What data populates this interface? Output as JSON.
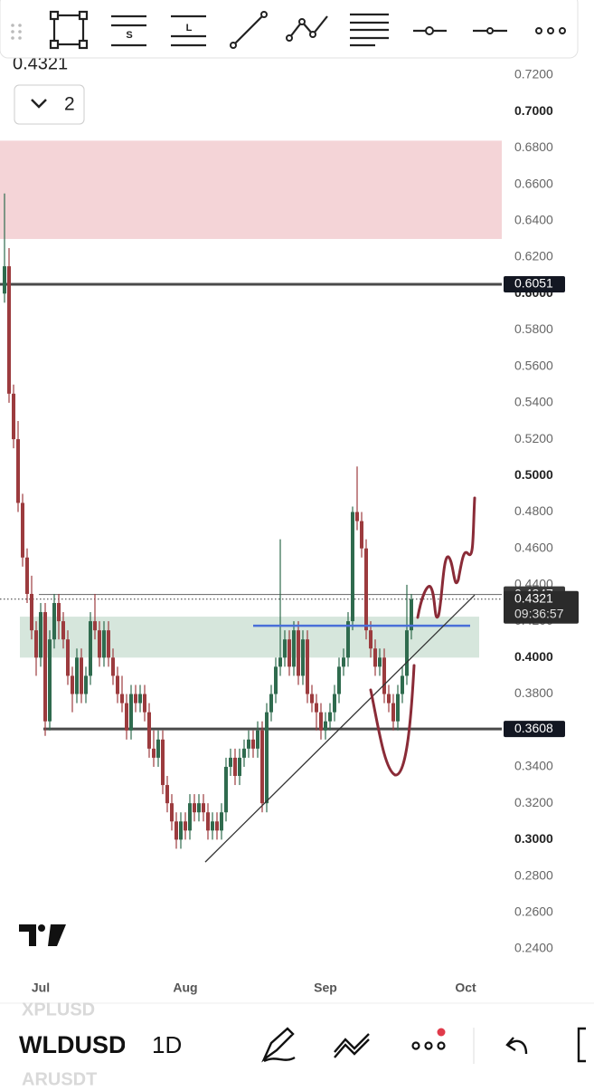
{
  "chart_data": {
    "type": "candlestick",
    "symbol_prev": "XPLUSD",
    "symbol": "WLDUSD",
    "symbol_next": "ARUSDT",
    "interval": "1D",
    "indicator_count": "2",
    "countdown": "09:36:57",
    "last_price": 0.4321,
    "ylim": [
      0.24,
      0.72
    ],
    "yticks": [
      {
        "value": 0.72,
        "label": "0.7200"
      },
      {
        "value": 0.7,
        "label": "0.7000"
      },
      {
        "value": 0.68,
        "label": "0.6800"
      },
      {
        "value": 0.66,
        "label": "0.6600"
      },
      {
        "value": 0.64,
        "label": "0.6400"
      },
      {
        "value": 0.62,
        "label": "0.6200"
      },
      {
        "value": 0.6,
        "label": "0.6000"
      },
      {
        "value": 0.58,
        "label": "0.5800"
      },
      {
        "value": 0.56,
        "label": "0.5600"
      },
      {
        "value": 0.54,
        "label": "0.5400"
      },
      {
        "value": 0.52,
        "label": "0.5200"
      },
      {
        "value": 0.5,
        "label": "0.5000"
      },
      {
        "value": 0.48,
        "label": "0.4800"
      },
      {
        "value": 0.46,
        "label": "0.4600"
      },
      {
        "value": 0.44,
        "label": "0.4400"
      },
      {
        "value": 0.42,
        "label": "0.4200"
      },
      {
        "value": 0.4,
        "label": "0.4000"
      },
      {
        "value": 0.38,
        "label": "0.3800"
      },
      {
        "value": 0.36,
        "label": "0.3600"
      },
      {
        "value": 0.34,
        "label": "0.3400"
      },
      {
        "value": 0.32,
        "label": "0.3200"
      },
      {
        "value": 0.3,
        "label": "0.3000"
      },
      {
        "value": 0.28,
        "label": "0.2800"
      },
      {
        "value": 0.26,
        "label": "0.2600"
      },
      {
        "value": 0.24,
        "label": "0.2400"
      }
    ],
    "xlim": [
      -1,
      110
    ],
    "xticks": [
      {
        "value": 8,
        "label": "Jul"
      },
      {
        "value": 40,
        "label": "Aug"
      },
      {
        "value": 71,
        "label": "Sep"
      },
      {
        "value": 102,
        "label": "Oct"
      }
    ],
    "series": [
      {
        "name": "WLDUSD",
        "up_color": "#2f6b4e",
        "down_color": "#9c3b3e",
        "open": [
          0.6,
          0.615,
          0.545,
          0.52,
          0.485,
          0.455,
          0.435,
          0.415,
          0.4,
          0.425,
          0.365,
          0.41,
          0.43,
          0.42,
          0.41,
          0.39,
          0.38,
          0.4,
          0.38,
          0.39,
          0.42,
          0.415,
          0.4,
          0.415,
          0.4,
          0.39,
          0.38,
          0.375,
          0.36,
          0.38,
          0.375,
          0.38,
          0.37,
          0.35,
          0.345,
          0.355,
          0.33,
          0.32,
          0.31,
          0.3,
          0.31,
          0.305,
          0.32,
          0.315,
          0.32,
          0.315,
          0.305,
          0.31,
          0.305,
          0.315,
          0.34,
          0.345,
          0.335,
          0.345,
          0.35,
          0.355,
          0.35,
          0.36,
          0.32,
          0.37,
          0.38,
          0.395,
          0.4,
          0.41,
          0.395,
          0.415,
          0.39,
          0.41,
          0.38,
          0.375,
          0.37,
          0.36,
          0.365,
          0.37,
          0.38,
          0.395,
          0.4,
          0.42,
          0.48,
          0.475,
          0.46,
          0.415,
          0.405,
          0.395,
          0.4,
          0.38,
          0.375,
          0.365,
          0.38,
          0.39,
          0.415
        ],
        "high": [
          0.655,
          0.625,
          0.55,
          0.53,
          0.49,
          0.46,
          0.445,
          0.42,
          0.43,
          0.43,
          0.415,
          0.435,
          0.435,
          0.425,
          0.415,
          0.395,
          0.405,
          0.405,
          0.395,
          0.425,
          0.435,
          0.42,
          0.42,
          0.42,
          0.405,
          0.395,
          0.39,
          0.38,
          0.385,
          0.385,
          0.385,
          0.385,
          0.375,
          0.36,
          0.36,
          0.36,
          0.335,
          0.325,
          0.315,
          0.315,
          0.315,
          0.325,
          0.325,
          0.325,
          0.325,
          0.32,
          0.315,
          0.315,
          0.32,
          0.345,
          0.35,
          0.35,
          0.35,
          0.355,
          0.36,
          0.36,
          0.365,
          0.365,
          0.375,
          0.385,
          0.4,
          0.465,
          0.415,
          0.415,
          0.42,
          0.42,
          0.415,
          0.415,
          0.385,
          0.38,
          0.375,
          0.37,
          0.375,
          0.385,
          0.4,
          0.405,
          0.425,
          0.483,
          0.505,
          0.48,
          0.465,
          0.42,
          0.41,
          0.405,
          0.405,
          0.385,
          0.38,
          0.385,
          0.395,
          0.44,
          0.435
        ],
        "low": [
          0.595,
          0.54,
          0.515,
          0.48,
          0.45,
          0.43,
          0.41,
          0.39,
          0.395,
          0.357,
          0.36,
          0.405,
          0.41,
          0.405,
          0.385,
          0.37,
          0.375,
          0.375,
          0.375,
          0.385,
          0.41,
          0.395,
          0.395,
          0.395,
          0.385,
          0.375,
          0.37,
          0.355,
          0.355,
          0.37,
          0.37,
          0.365,
          0.345,
          0.34,
          0.34,
          0.325,
          0.315,
          0.305,
          0.295,
          0.295,
          0.3,
          0.3,
          0.31,
          0.31,
          0.31,
          0.3,
          0.3,
          0.3,
          0.3,
          0.31,
          0.335,
          0.33,
          0.33,
          0.34,
          0.345,
          0.345,
          0.345,
          0.315,
          0.315,
          0.365,
          0.375,
          0.39,
          0.395,
          0.39,
          0.39,
          0.385,
          0.385,
          0.375,
          0.37,
          0.36,
          0.355,
          0.355,
          0.36,
          0.365,
          0.375,
          0.39,
          0.395,
          0.415,
          0.47,
          0.455,
          0.41,
          0.4,
          0.39,
          0.39,
          0.375,
          0.37,
          0.36,
          0.36,
          0.375,
          0.385,
          0.41
        ],
        "close": [
          0.615,
          0.545,
          0.52,
          0.485,
          0.455,
          0.435,
          0.415,
          0.4,
          0.425,
          0.365,
          0.41,
          0.43,
          0.42,
          0.41,
          0.39,
          0.38,
          0.4,
          0.38,
          0.39,
          0.42,
          0.415,
          0.4,
          0.415,
          0.4,
          0.39,
          0.38,
          0.375,
          0.36,
          0.38,
          0.375,
          0.38,
          0.37,
          0.35,
          0.345,
          0.355,
          0.33,
          0.32,
          0.31,
          0.3,
          0.31,
          0.305,
          0.32,
          0.315,
          0.32,
          0.315,
          0.305,
          0.31,
          0.305,
          0.315,
          0.34,
          0.345,
          0.335,
          0.345,
          0.35,
          0.355,
          0.35,
          0.36,
          0.32,
          0.37,
          0.38,
          0.395,
          0.4,
          0.41,
          0.395,
          0.415,
          0.39,
          0.41,
          0.38,
          0.375,
          0.37,
          0.36,
          0.365,
          0.37,
          0.38,
          0.395,
          0.4,
          0.42,
          0.48,
          0.475,
          0.46,
          0.415,
          0.405,
          0.395,
          0.4,
          0.38,
          0.375,
          0.365,
          0.38,
          0.39,
          0.415,
          0.4321
        ]
      }
    ],
    "zones": [
      {
        "from": 0.63,
        "to": 0.684,
        "x": [
          -1,
          110
        ],
        "color": "#f4d4d7"
      },
      {
        "from": 0.4,
        "to": 0.4225,
        "x": [
          3.4,
          105
        ],
        "color": "#d6e6dc"
      }
    ],
    "horizontal_lines": [
      {
        "value": 0.6051,
        "color": "#4a4a4a",
        "width": 3,
        "start": -1,
        "tag_color": "#131722"
      },
      {
        "value": 0.3608,
        "color": "#4a4a4a",
        "width": 3,
        "start": 8.6,
        "tag_color": "#131722"
      },
      {
        "value": 0.4347,
        "color": "#777777",
        "width": 1.2,
        "start": 7.6,
        "tag_color": "#3a3a3a"
      }
    ],
    "segments": [
      {
        "from": [
          55,
          0.4175
        ],
        "to": [
          103,
          0.4175
        ],
        "color": "#4a6fd8",
        "width": 2.5
      },
      {
        "from": [
          44.4,
          0.2877
        ],
        "to": [
          104,
          0.4344
        ],
        "color": "#333333",
        "width": 1.3
      }
    ]
  }
}
